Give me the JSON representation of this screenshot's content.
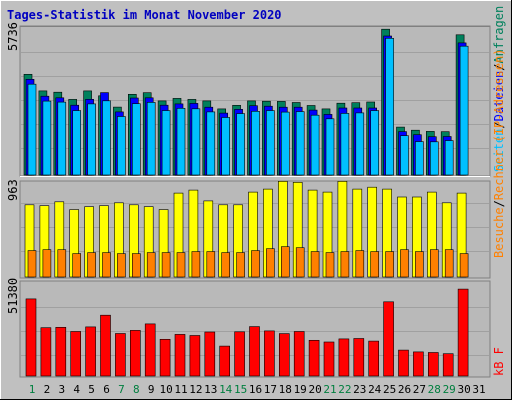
{
  "title": "Tages-Statistik im Monat November 2020",
  "colors": {
    "background": "#c0c0c0",
    "panel": "#b9b9b9",
    "title_text": "#0000c0",
    "weekday_text": "#0000c0",
    "weekend_text": "#007f3f",
    "hits": "#00805c",
    "files": "#0000ff",
    "pages": "#00c0ff",
    "visits": "#ff8000",
    "sites": "#ffff00",
    "kbytes": "#ff0000"
  },
  "chart_data": [
    {
      "type": "bar",
      "name": "hits-files-pages",
      "ymax": 5736,
      "ymax_label": "5736",
      "right_labels": {
        "pages": "Seiten",
        "files": "Dateien",
        "hits": "Anfragen"
      },
      "separator": "/",
      "categories": [
        "1",
        "2",
        "3",
        "4",
        "5",
        "6",
        "7",
        "8",
        "9",
        "10",
        "11",
        "12",
        "13",
        "14",
        "15",
        "16",
        "17",
        "18",
        "19",
        "20",
        "21",
        "22",
        "23",
        "24",
        "25",
        "26",
        "27",
        "28",
        "29",
        "30",
        "31"
      ],
      "weekend_days": [
        1,
        7,
        8,
        14,
        15,
        21,
        22,
        28,
        29
      ],
      "series": [
        {
          "key": "hits",
          "values": [
            3930,
            3280,
            3230,
            2950,
            3280,
            3090,
            2650,
            3150,
            3210,
            2890,
            2990,
            2950,
            2890,
            2580,
            2720,
            2890,
            2880,
            2870,
            2830,
            2710,
            2580,
            2800,
            2820,
            2850,
            5690,
            1870,
            1750,
            1700,
            1690,
            5470,
            0
          ]
        },
        {
          "key": "files",
          "values": [
            3890,
            3230,
            3170,
            2880,
            3110,
            3370,
            2620,
            3160,
            3170,
            2880,
            2930,
            2950,
            2800,
            2570,
            2720,
            2860,
            2840,
            2800,
            2800,
            2690,
            2520,
            2770,
            2770,
            2770,
            5580,
            1850,
            1730,
            1650,
            1660,
            5310,
            0
          ]
        },
        {
          "key": "pages",
          "values": [
            3700,
            3040,
            3000,
            2670,
            2930,
            3050,
            2440,
            2940,
            2990,
            2670,
            2760,
            2740,
            2620,
            2400,
            2550,
            2640,
            2670,
            2610,
            2630,
            2490,
            2350,
            2560,
            2580,
            2670,
            5490,
            1690,
            1460,
            1450,
            1500,
            5180,
            0
          ]
        }
      ]
    },
    {
      "type": "bar",
      "name": "visits-sites",
      "ymax": 963,
      "ymax_label": "963",
      "right_labels": {
        "visits": "Besuche",
        "sites": "Rechner (IP-Adressen)"
      },
      "separator": "/",
      "series": [
        {
          "key": "sites",
          "values": [
            740,
            730,
            770,
            690,
            720,
            730,
            760,
            740,
            720,
            690,
            860,
            890,
            780,
            740,
            740,
            870,
            900,
            980,
            970,
            890,
            870,
            980,
            900,
            920,
            900,
            820,
            820,
            870,
            760,
            860,
            0
          ]
        },
        {
          "key": "visits",
          "values": [
            270,
            280,
            280,
            240,
            250,
            250,
            240,
            240,
            250,
            250,
            250,
            260,
            260,
            250,
            250,
            270,
            290,
            310,
            300,
            260,
            250,
            260,
            270,
            260,
            260,
            280,
            260,
            280,
            280,
            240,
            0
          ]
        }
      ]
    },
    {
      "type": "bar",
      "name": "kbytes",
      "ymax": 51380,
      "ymax_label": "51380",
      "right_labels": {
        "kbytes": "kB F"
      },
      "series": [
        {
          "key": "kbytes",
          "values": [
            42600,
            26700,
            26900,
            24600,
            27100,
            33600,
            23500,
            25200,
            28800,
            20300,
            23000,
            22400,
            24300,
            16500,
            24400,
            27300,
            24900,
            23400,
            24600,
            19700,
            18800,
            20500,
            20700,
            19300,
            41000,
            14300,
            13300,
            13000,
            12300,
            48000,
            0
          ]
        }
      ]
    }
  ]
}
